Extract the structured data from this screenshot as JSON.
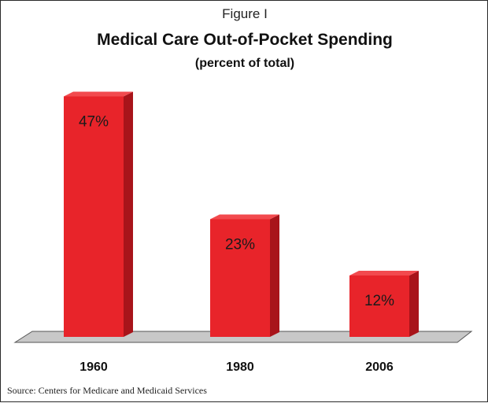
{
  "figure_label": "Figure I",
  "source": "Source: Centers for Medicare and Medicaid Services",
  "colors": {
    "bar_front": "#e8242a",
    "bar_side": "#a8141a",
    "bar_top": "#f24a4e",
    "floor": "#c8c8c8"
  },
  "chart_data": {
    "type": "bar",
    "title": "Medical Care Out-of-Pocket Spending",
    "subtitle": "(percent of total)",
    "categories": [
      "1960",
      "1980",
      "2006"
    ],
    "values": [
      47,
      23,
      12
    ],
    "value_labels": [
      "47%",
      "23%",
      "12%"
    ],
    "xlabel": "",
    "ylabel": "",
    "ylim": [
      0,
      50
    ],
    "grid": false,
    "legend": "none"
  }
}
